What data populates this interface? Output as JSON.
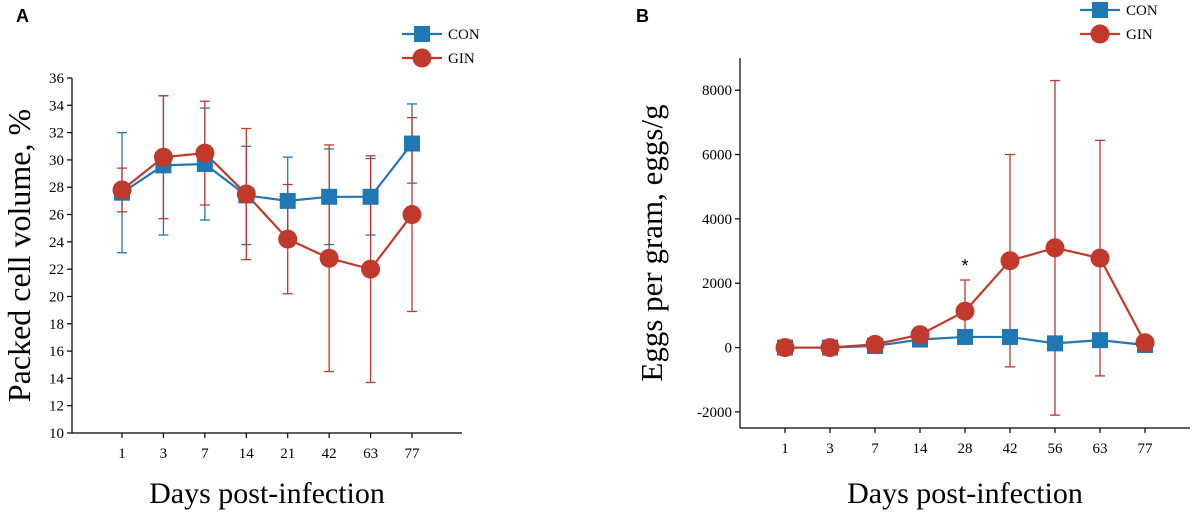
{
  "colors": {
    "con": "#1f77b4",
    "gin": "#c0392b",
    "axis": "#000000"
  },
  "chart_data": [
    {
      "panel": "A",
      "type": "line",
      "xlabel": "Days post-infection",
      "ylabel": "Packed cell volume, %",
      "categories": [
        "1",
        "3",
        "7",
        "14",
        "21",
        "42",
        "63",
        "77"
      ],
      "ylim": [
        10,
        36
      ],
      "yticks": [
        10,
        12,
        14,
        16,
        18,
        20,
        22,
        24,
        26,
        28,
        30,
        32,
        34,
        36
      ],
      "legend_position": "top-right",
      "series": [
        {
          "name": "CON",
          "marker": "square",
          "values": [
            27.6,
            29.6,
            29.7,
            27.4,
            27.0,
            27.3,
            27.3,
            31.2
          ],
          "err": [
            4.4,
            5.1,
            4.1,
            3.6,
            3.2,
            3.5,
            2.8,
            2.9
          ]
        },
        {
          "name": "GIN",
          "marker": "circle",
          "values": [
            27.8,
            30.2,
            30.5,
            27.5,
            24.2,
            22.8,
            22.0,
            26.0
          ],
          "err": [
            1.6,
            4.5,
            3.8,
            4.8,
            4.0,
            8.3,
            8.3,
            7.1
          ]
        }
      ]
    },
    {
      "panel": "B",
      "type": "line",
      "xlabel": "Days post-infection",
      "ylabel": "Eggs per gram, eggs/g",
      "categories": [
        "1",
        "3",
        "7",
        "14",
        "28",
        "42",
        "56",
        "63",
        "77"
      ],
      "ylim": [
        -2500,
        9000
      ],
      "yticks": [
        -2000,
        0,
        2000,
        4000,
        6000,
        8000
      ],
      "legend_position": "top-right",
      "annotations": [
        {
          "text": "*",
          "category": "28"
        }
      ],
      "series": [
        {
          "name": "CON",
          "marker": "square",
          "values": [
            0,
            0,
            50,
            250,
            330,
            330,
            130,
            230,
            80
          ],
          "err": [
            0,
            0,
            0,
            0,
            0,
            0,
            0,
            0,
            0
          ]
        },
        {
          "name": "GIN",
          "marker": "circle",
          "values": [
            0,
            0,
            100,
            400,
            1130,
            2700,
            3100,
            2780,
            150
          ],
          "err": [
            0,
            0,
            0,
            0,
            970,
            3300,
            5200,
            3660,
            0
          ]
        }
      ]
    }
  ]
}
